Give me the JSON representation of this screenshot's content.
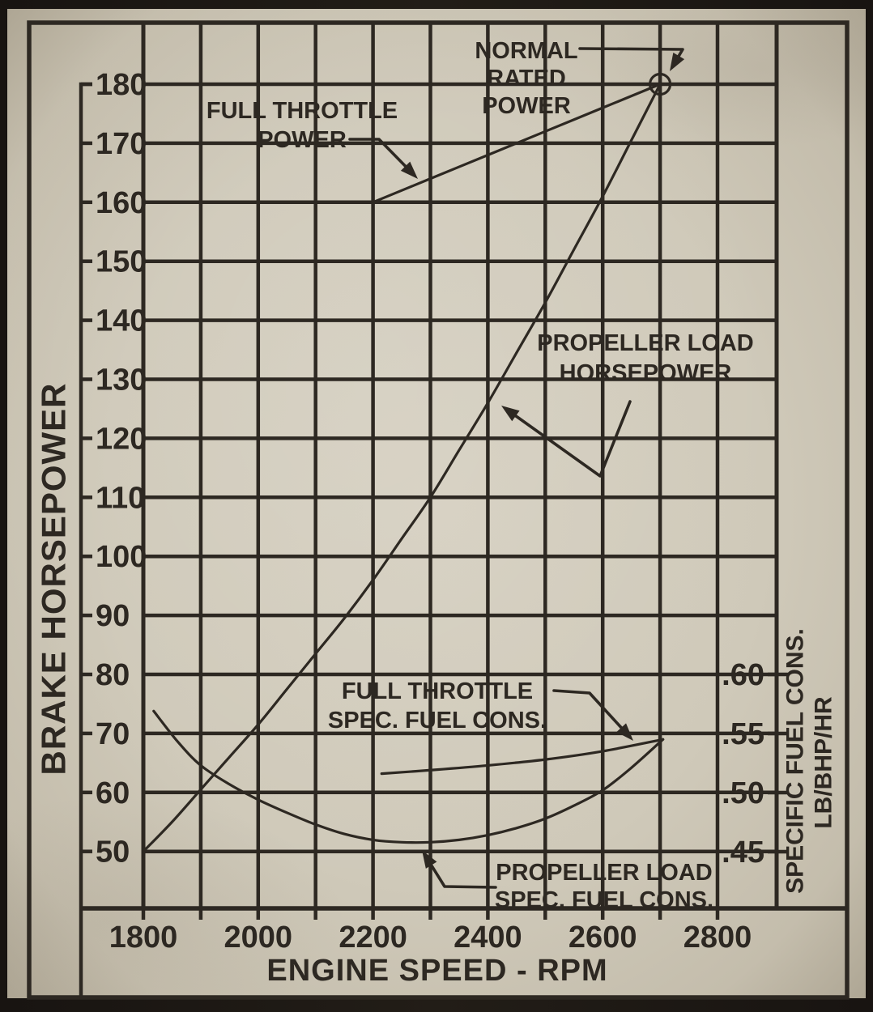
{
  "figure": {
    "xlabel": "ENGINE SPEED - RPM",
    "ylabel_left": "BRAKE HORSEPOWER",
    "ylabel_right_line1": "SPECIFIC FUEL CONS.",
    "ylabel_right_line2": "LB/BHP/HR"
  },
  "chart_data": {
    "type": "line",
    "title": "",
    "xlabel": "ENGINE SPEED - RPM",
    "ylabel_left": "BRAKE HORSEPOWER",
    "ylabel_right": "SPECIFIC FUEL CONS. LB/BHP/HR",
    "x_range": [
      1800,
      2900
    ],
    "x_tick_step_minor": 100,
    "x_ticks": [
      1800,
      2000,
      2200,
      2400,
      2600,
      2800
    ],
    "y_left_range": [
      40,
      190
    ],
    "y_left_ticks": [
      50,
      60,
      70,
      80,
      90,
      100,
      110,
      120,
      130,
      140,
      150,
      160,
      170,
      180
    ],
    "y_right_ticks": [
      0.45,
      0.5,
      0.55,
      0.6
    ],
    "y_right_tick_labels": [
      ".45",
      ".50",
      ".55",
      ".60"
    ],
    "axis_note": "right axis .45 aligns with 50 BHP gridline, .05 per 10 BHP; square grid",
    "grid": true,
    "series": [
      {
        "name": "FULL THROTTLE POWER",
        "axis": "left",
        "points": [
          [
            2200,
            160
          ],
          [
            2300,
            164
          ],
          [
            2400,
            168
          ],
          [
            2500,
            172
          ],
          [
            2600,
            176
          ],
          [
            2700,
            180
          ]
        ]
      },
      {
        "name": "PROPELLER LOAD HORSEPOWER",
        "axis": "left",
        "points": [
          [
            1800,
            50
          ],
          [
            1850,
            55
          ],
          [
            1900,
            60.5
          ],
          [
            1950,
            66
          ],
          [
            2000,
            71.5
          ],
          [
            2050,
            77.5
          ],
          [
            2100,
            83.5
          ],
          [
            2150,
            89.5
          ],
          [
            2200,
            96
          ],
          [
            2250,
            103
          ],
          [
            2300,
            110
          ],
          [
            2350,
            118
          ],
          [
            2400,
            126
          ],
          [
            2450,
            134.5
          ],
          [
            2500,
            143
          ],
          [
            2550,
            152
          ],
          [
            2600,
            161
          ],
          [
            2650,
            170.5
          ],
          [
            2700,
            180
          ]
        ]
      },
      {
        "name": "FULL THROTTLE SPEC. FUEL CONS.",
        "axis": "right",
        "points": [
          [
            2215,
            0.516
          ],
          [
            2300,
            0.519
          ],
          [
            2400,
            0.523
          ],
          [
            2500,
            0.528
          ],
          [
            2600,
            0.535
          ],
          [
            2705,
            0.545
          ]
        ]
      },
      {
        "name": "PROPELLER LOAD SPEC. FUEL CONS.",
        "axis": "right",
        "points": [
          [
            1818,
            0.569
          ],
          [
            1860,
            0.543
          ],
          [
            1900,
            0.523
          ],
          [
            1950,
            0.507
          ],
          [
            2000,
            0.494
          ],
          [
            2050,
            0.483
          ],
          [
            2100,
            0.473
          ],
          [
            2150,
            0.465
          ],
          [
            2200,
            0.46
          ],
          [
            2250,
            0.458
          ],
          [
            2300,
            0.458
          ],
          [
            2350,
            0.46
          ],
          [
            2400,
            0.464
          ],
          [
            2450,
            0.47
          ],
          [
            2500,
            0.478
          ],
          [
            2550,
            0.489
          ],
          [
            2600,
            0.502
          ],
          [
            2650,
            0.521
          ],
          [
            2705,
            0.545
          ]
        ]
      }
    ],
    "marker": {
      "shape": "open-circle",
      "x": 2700,
      "y": 180,
      "label": "NORMAL RATED POWER"
    }
  },
  "annotations": [
    {
      "id": "normal-rated-power",
      "lines": [
        "NORMAL",
        "RATED",
        "POWER"
      ]
    },
    {
      "id": "full-throttle-power",
      "lines": [
        "FULL THROTTLE",
        "POWER"
      ]
    },
    {
      "id": "propeller-load-horsepower",
      "lines": [
        "PROPELLER LOAD",
        "HORSEPOWER"
      ]
    },
    {
      "id": "full-throttle-sfc",
      "lines": [
        "FULL THROTTLE",
        "SPEC. FUEL CONS."
      ]
    },
    {
      "id": "propeller-load-sfc",
      "lines": [
        "PROPELLER LOAD",
        "SPEC. FUEL CONS."
      ]
    }
  ],
  "colors": {
    "paper": "#cfc9b9",
    "ink": "#2d2822",
    "frame": "#181411"
  }
}
